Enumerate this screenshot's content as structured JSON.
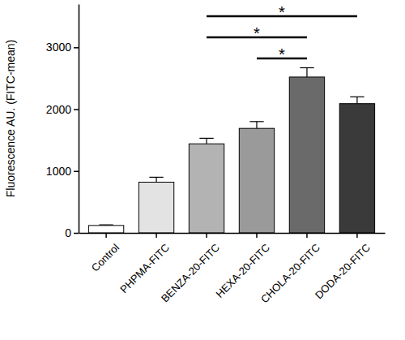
{
  "chart_data": {
    "type": "bar",
    "y_label": "Fluorescence AU. (FITC-mean)",
    "categories": [
      "Control",
      "PHPMA-FITC",
      "BENZA-20-FITC",
      "HEXA-20-FITC",
      "CHOLA-20-FITC",
      "DODA-20-FITC"
    ],
    "values": [
      120,
      820,
      1440,
      1690,
      2520,
      2090
    ],
    "errors": [
      10,
      80,
      90,
      110,
      150,
      110
    ],
    "colors": [
      "#ffffff",
      "#e3e3e3",
      "#b3b3b3",
      "#9a9a9a",
      "#6a6a6a",
      "#3a3a3a"
    ],
    "ylim": [
      0,
      3700
    ],
    "yticks": [
      0,
      1000,
      2000,
      3000
    ],
    "significance": [
      {
        "categories": [
          "HEXA-20-FITC",
          "CHOLA-20-FITC"
        ],
        "label": "*"
      },
      {
        "categories": [
          "BENZA-20-FITC",
          "CHOLA-20-FITC"
        ],
        "label": "*"
      },
      {
        "categories": [
          "BENZA-20-FITC",
          "DODA-20-FITC"
        ],
        "label": "*"
      }
    ],
    "grid": false
  }
}
